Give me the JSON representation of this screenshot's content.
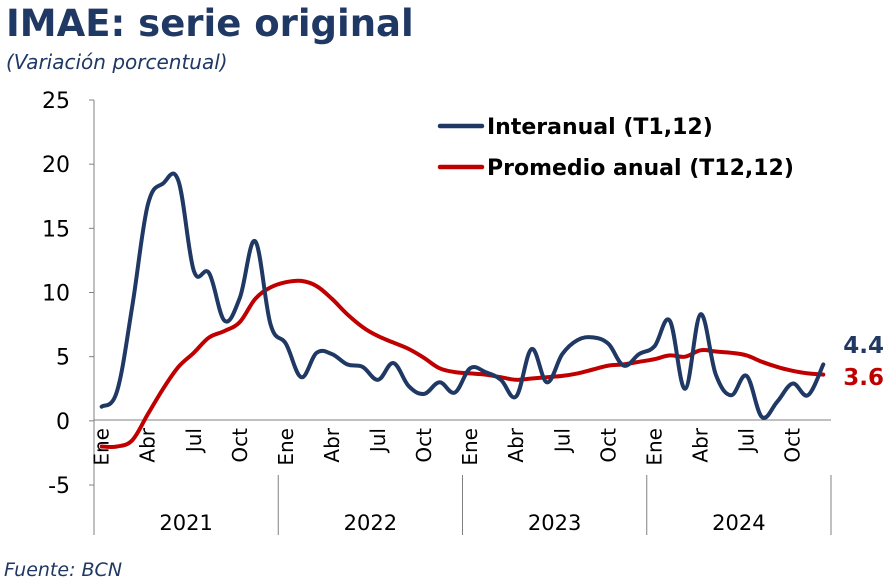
{
  "title": "IMAE: serie original",
  "subtitle": "(Variación porcentual)",
  "source": "Fuente: BCN",
  "colors": {
    "interanual": "#1f3864",
    "promedio": "#c00000",
    "text": "#1f3864"
  },
  "chart_data": {
    "type": "line",
    "ylim": [
      -5,
      25
    ],
    "yticks": [
      -5,
      0,
      5,
      10,
      15,
      20,
      25
    ],
    "x_count": 48,
    "month_ticks": [
      {
        "index": 0,
        "label": "Ene"
      },
      {
        "index": 3,
        "label": "Abr"
      },
      {
        "index": 6,
        "label": "Jul"
      },
      {
        "index": 9,
        "label": "Oct"
      },
      {
        "index": 12,
        "label": "Ene"
      },
      {
        "index": 15,
        "label": "Abr"
      },
      {
        "index": 18,
        "label": "Jul"
      },
      {
        "index": 21,
        "label": "Oct"
      },
      {
        "index": 24,
        "label": "Ene"
      },
      {
        "index": 27,
        "label": "Abr"
      },
      {
        "index": 30,
        "label": "Jul"
      },
      {
        "index": 33,
        "label": "Oct"
      },
      {
        "index": 36,
        "label": "Ene"
      },
      {
        "index": 39,
        "label": "Abr"
      },
      {
        "index": 42,
        "label": "Jul"
      },
      {
        "index": 45,
        "label": "Oct"
      }
    ],
    "years": [
      {
        "label": "2021",
        "start": 0,
        "end": 12
      },
      {
        "label": "2022",
        "start": 12,
        "end": 24
      },
      {
        "label": "2023",
        "start": 24,
        "end": 36
      },
      {
        "label": "2024",
        "start": 36,
        "end": 48
      }
    ],
    "legend_position": "top-right",
    "grid": false,
    "series": [
      {
        "name": "Interanual (T1,12)",
        "color": "#1f3864",
        "end_label": "4.4",
        "values": [
          1.1,
          2.3,
          9.0,
          16.8,
          18.5,
          18.7,
          11.7,
          11.5,
          7.8,
          9.6,
          14.0,
          7.5,
          6.0,
          3.4,
          5.3,
          5.2,
          4.4,
          4.2,
          3.2,
          4.5,
          2.7,
          2.1,
          3.0,
          2.2,
          4.1,
          3.8,
          3.2,
          1.9,
          5.6,
          3.0,
          5.2,
          6.3,
          6.5,
          6.0,
          4.3,
          5.2,
          5.8,
          7.8,
          2.5,
          8.3,
          3.6,
          2.0,
          3.5,
          0.3,
          1.5,
          2.9,
          2.0,
          4.4
        ]
      },
      {
        "name": "Promedio anual (T12,12)",
        "color": "#c00000",
        "end_label": "3.6",
        "values": [
          -2.0,
          -2.0,
          -1.5,
          0.5,
          2.5,
          4.2,
          5.3,
          6.5,
          7.0,
          7.7,
          9.5,
          10.4,
          10.8,
          10.9,
          10.5,
          9.5,
          8.3,
          7.3,
          6.6,
          6.1,
          5.6,
          4.9,
          4.1,
          3.8,
          3.7,
          3.6,
          3.4,
          3.2,
          3.3,
          3.4,
          3.5,
          3.7,
          4.0,
          4.3,
          4.4,
          4.6,
          4.8,
          5.1,
          5.0,
          5.5,
          5.4,
          5.3,
          5.1,
          4.6,
          4.2,
          3.9,
          3.7,
          3.6
        ]
      }
    ]
  }
}
